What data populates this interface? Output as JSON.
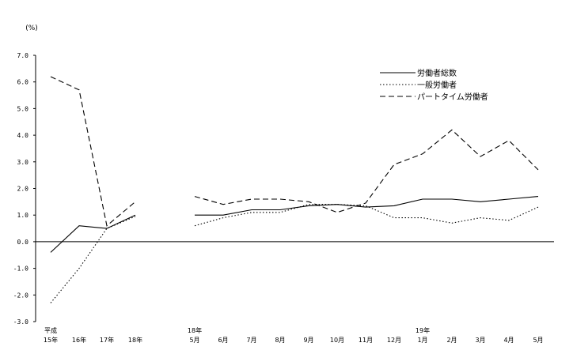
{
  "chart_data": {
    "type": "line",
    "ylabel": "(%)",
    "ylim": [
      -3.0,
      7.0
    ],
    "yticks": [
      "7.0",
      "6.0",
      "5.0",
      "4.0",
      "3.0",
      "2.0",
      "1.0",
      "0.0",
      "-1.0",
      "-2.0",
      "-3.0"
    ],
    "x_groups": [
      {
        "year_label": "平成",
        "month_labels": [
          "15年",
          "16年",
          "17年",
          "18年"
        ]
      },
      {
        "year_label": "18年",
        "month_labels": [
          "5月",
          "6月",
          "7月",
          "8月",
          "9月",
          "10月",
          "11月",
          "12月"
        ]
      },
      {
        "year_label": "19年",
        "month_labels": [
          "1月",
          "2月",
          "3月",
          "4月",
          "5月"
        ]
      }
    ],
    "legend_position": "top-right",
    "series": [
      {
        "name": "労働者総数",
        "style": "solid",
        "color": "#000000",
        "annual": [
          -0.4,
          0.6,
          0.5,
          1.0
        ],
        "monthly": [
          1.0,
          1.0,
          1.2,
          1.2,
          1.35,
          1.4,
          1.3,
          1.35,
          1.6,
          1.6,
          1.5,
          1.6,
          1.7
        ]
      },
      {
        "name": "一般労働者",
        "style": "dotted",
        "color": "#000000",
        "annual": [
          -2.3,
          -1.0,
          0.5,
          0.95
        ],
        "monthly": [
          0.6,
          0.9,
          1.1,
          1.1,
          1.4,
          1.4,
          1.35,
          0.9,
          0.9,
          0.7,
          0.9,
          0.8,
          1.3
        ]
      },
      {
        "name": "パートタイム労働者",
        "style": "dashed",
        "color": "#000000",
        "annual": [
          6.2,
          5.7,
          0.6,
          1.5
        ],
        "monthly": [
          1.7,
          1.4,
          1.6,
          1.6,
          1.5,
          1.1,
          1.45,
          2.9,
          3.3,
          4.2,
          3.2,
          3.8,
          2.7
        ]
      }
    ]
  }
}
